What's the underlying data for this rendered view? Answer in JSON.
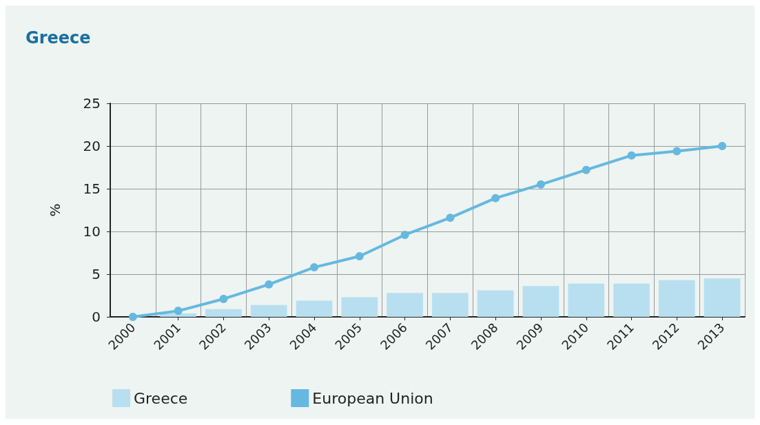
{
  "chart_data": {
    "type": "bar",
    "title": "Greece",
    "ylabel": "%",
    "categories": [
      "2000",
      "2001",
      "2002",
      "2003",
      "2004",
      "2005",
      "2006",
      "2007",
      "2008",
      "2009",
      "2010",
      "2011",
      "2012",
      "2013"
    ],
    "series": [
      {
        "name": "Greece",
        "color": "#b8dff0",
        "values": [
          0,
          0.4,
          0.9,
          1.4,
          1.9,
          2.3,
          2.8,
          2.8,
          3.1,
          3.6,
          3.9,
          3.9,
          4.3,
          4.5
        ]
      },
      {
        "name": "European Union",
        "type": "line",
        "color": "#66b8e0",
        "values": [
          0,
          0.7,
          2.1,
          3.8,
          5.8,
          7.1,
          9.6,
          11.6,
          13.9,
          15.5,
          17.2,
          18.9,
          19.4,
          20.0
        ]
      }
    ],
    "ylim": [
      0,
      25
    ],
    "yticks": [
      0,
      5,
      10,
      15,
      20,
      25
    ],
    "grid": true,
    "legend": "bottom left",
    "marker": "circle"
  }
}
